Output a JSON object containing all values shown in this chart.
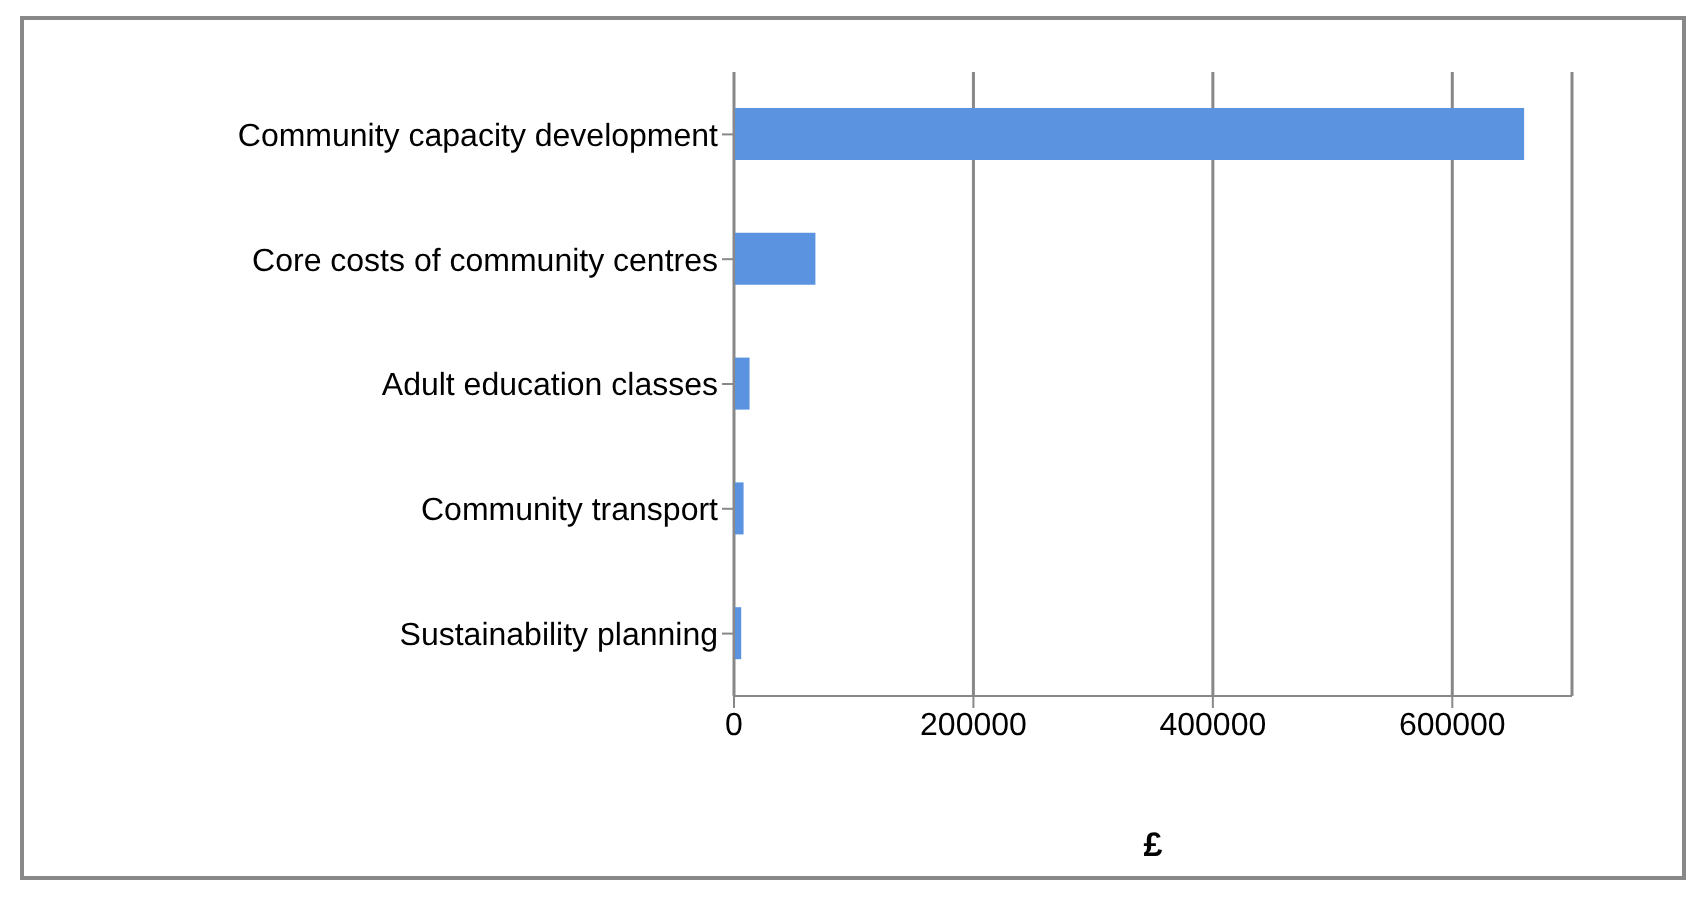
{
  "chart_data": {
    "type": "bar",
    "orientation": "horizontal",
    "categories": [
      "Community capacity development",
      "Core costs of community centres",
      "Adult education classes",
      "Community transport",
      "Sustainability planning"
    ],
    "values": [
      660000,
      68000,
      13000,
      8000,
      6000
    ],
    "color": "#5b93e0",
    "xlabel": "£",
    "xlim": [
      0,
      700000
    ],
    "xticks": [
      0,
      200000,
      400000,
      600000
    ],
    "grid": "x"
  }
}
